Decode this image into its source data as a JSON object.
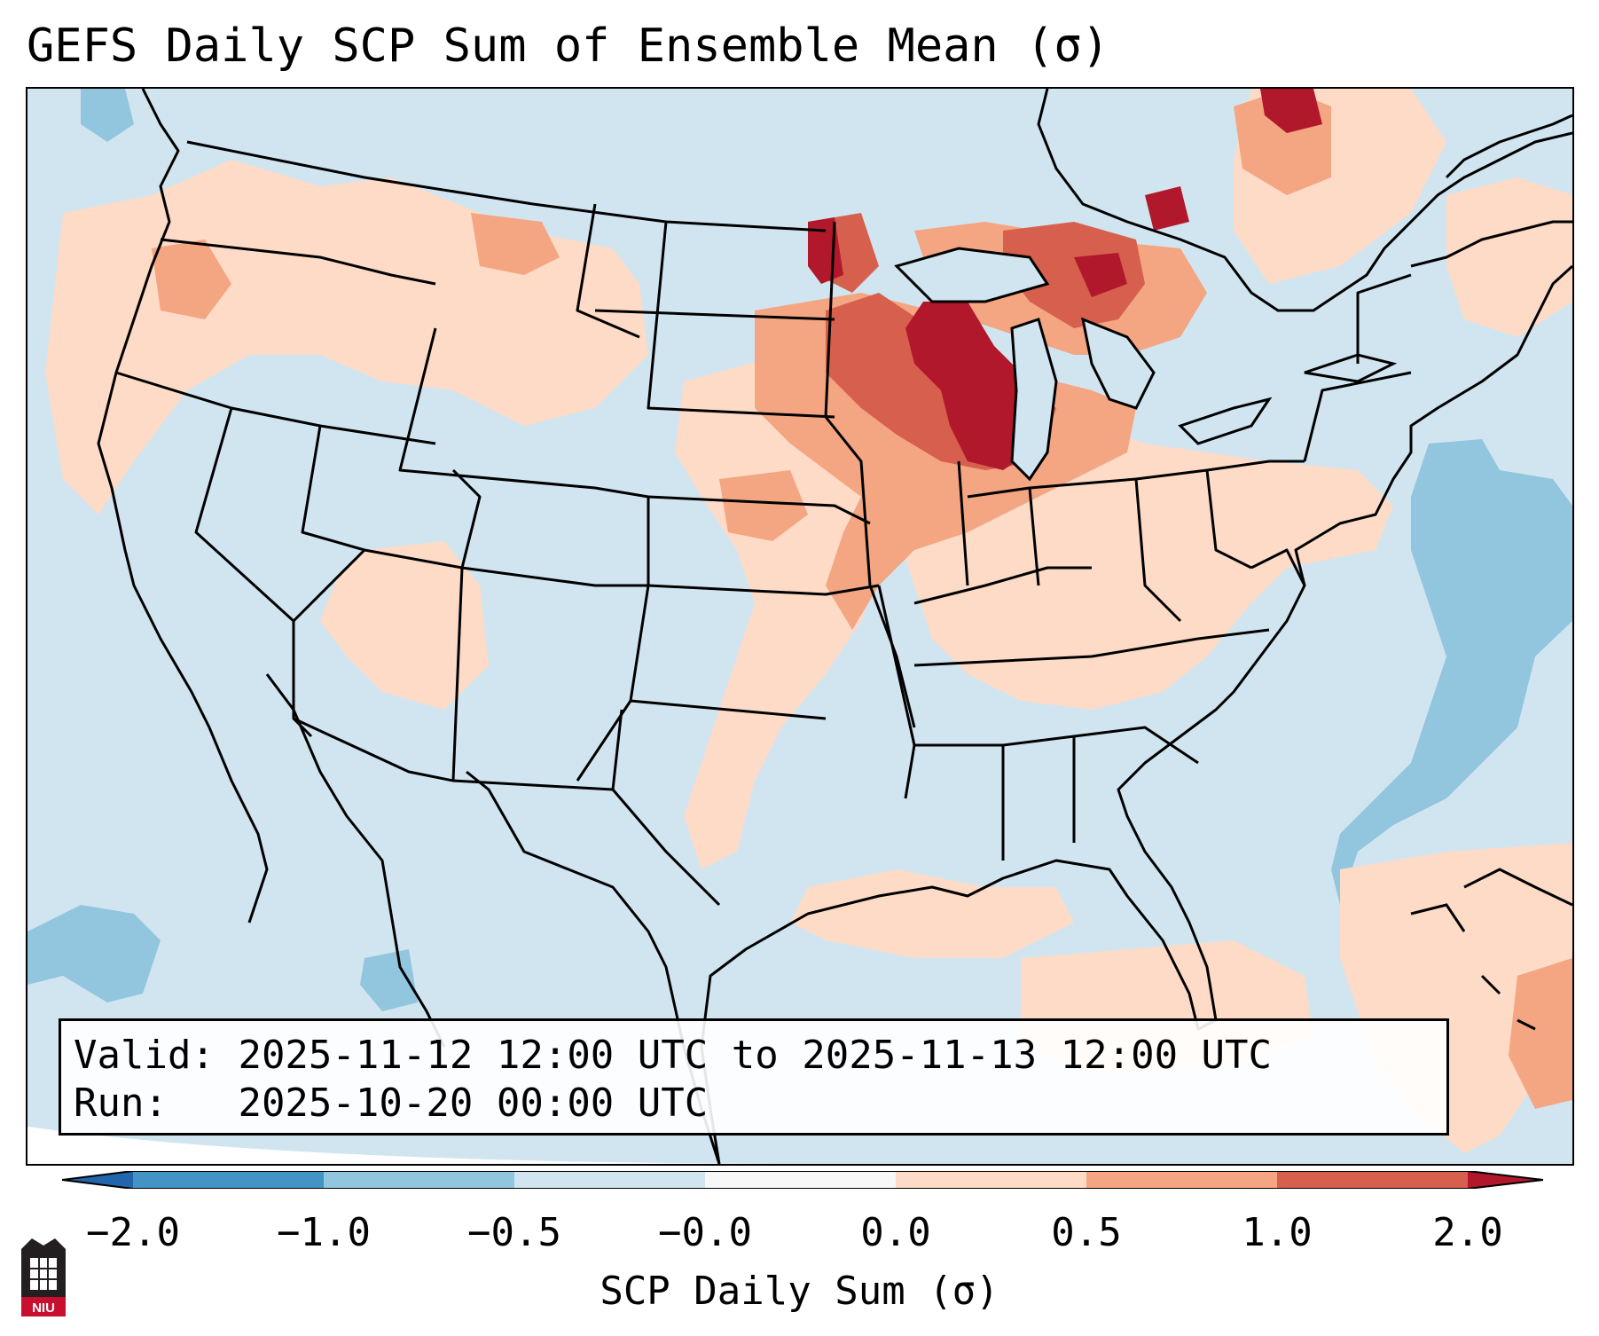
{
  "title": "GEFS Daily SCP Sum of Ensemble Mean (σ)",
  "info": {
    "valid_label": "Valid:",
    "valid_value": "2025-11-12 12:00 UTC to 2025-11-13 12:00 UTC",
    "run_label": "Run:",
    "run_value": "2025-10-20 00:00 UTC"
  },
  "colorbar": {
    "label": "SCP Daily Sum (σ)",
    "ticks": [
      "−2.0",
      "−1.0",
      "−0.5",
      "−0.0",
      "0.0",
      "0.5",
      "1.0",
      "2.0"
    ],
    "colors": [
      "#4393c3",
      "#92c5de",
      "#d1e5f0",
      "#f7f7f7",
      "#fddbc7",
      "#f4a582",
      "#d6604d",
      "#b2182b"
    ],
    "extend_low_color": "#2166ac",
    "extend_high_color": "#b2182b"
  },
  "logo_text": "NIU",
  "map": {
    "background_color": "#d1e5f0",
    "region": "Contiguous United States",
    "legend_bins": [
      "< -2.0",
      "-1.0 to -0.5",
      "-0.5 to 0.0",
      "0.0 to 0.5",
      "0.5 to 1.0",
      "1.0 to 2.0",
      "> 2.0"
    ]
  }
}
